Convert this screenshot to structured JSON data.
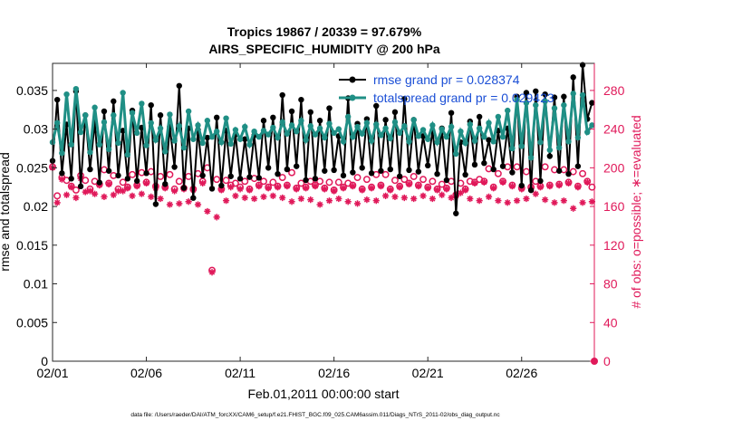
{
  "chart_data": {
    "type": "line",
    "title_line1": "Tropics 19867 / 20339 = 97.679%",
    "title_line2": "AIRS_SPECIFIC_HUMIDITY @ 200 hPa",
    "xlabel": "Feb.01,2011 00:00:00 start",
    "ylabel_left": "rmse and totalspread",
    "ylabel_right": "# of obs: o=possible; ∗=evaluated",
    "footer": "data file: /Users/raeder/DAI/ATM_forcXX/CAM6_setup/f.e21.FHIST_BGC.f09_025.CAM6assim.011/Diags_NTrS_2011-02/obs_diag_output.nc",
    "xlim": [
      0,
      28.875
    ],
    "ylim_left": [
      0,
      0.0385
    ],
    "ylim_right": [
      0,
      308
    ],
    "x_ticks": [
      0,
      5,
      10,
      15,
      20,
      25
    ],
    "x_tick_labels": [
      "02/01",
      "02/06",
      "02/11",
      "02/16",
      "02/21",
      "02/26"
    ],
    "y_left_ticks": [
      0,
      0.005,
      0.01,
      0.015,
      0.02,
      0.025,
      0.03,
      0.035
    ],
    "y_left_tick_labels": [
      "0",
      "0.005",
      "0.01",
      "0.015",
      "0.02",
      "0.025",
      "0.03",
      "0.035"
    ],
    "y_right_ticks": [
      0,
      40,
      80,
      120,
      160,
      200,
      240,
      280
    ],
    "y_right_tick_labels": [
      "0",
      "40",
      "80",
      "120",
      "160",
      "200",
      "240",
      "280"
    ],
    "x": [
      0,
      0.25,
      0.5,
      0.75,
      1,
      1.25,
      1.5,
      1.75,
      2,
      2.25,
      2.5,
      2.75,
      3,
      3.25,
      3.5,
      3.75,
      4,
      4.25,
      4.5,
      4.75,
      5,
      5.25,
      5.5,
      5.75,
      6,
      6.25,
      6.5,
      6.75,
      7,
      7.25,
      7.5,
      7.75,
      8,
      8.25,
      8.5,
      8.75,
      9,
      9.25,
      9.5,
      9.75,
      10,
      10.25,
      10.5,
      10.75,
      11,
      11.25,
      11.5,
      11.75,
      12,
      12.25,
      12.5,
      12.75,
      13,
      13.25,
      13.5,
      13.75,
      14,
      14.25,
      14.5,
      14.75,
      15,
      15.25,
      15.5,
      15.75,
      16,
      16.25,
      16.5,
      16.75,
      17,
      17.25,
      17.5,
      17.75,
      18,
      18.25,
      18.5,
      18.75,
      19,
      19.25,
      19.5,
      19.75,
      20,
      20.25,
      20.5,
      20.75,
      21,
      21.25,
      21.5,
      21.75,
      22,
      22.25,
      22.5,
      22.75,
      23,
      23.25,
      23.5,
      23.75,
      24,
      24.25,
      24.5,
      24.75,
      25,
      25.25,
      25.5,
      25.75,
      26,
      26.25,
      26.5,
      26.75,
      27,
      27.25,
      27.5,
      27.75,
      28,
      28.25,
      28.5,
      28.75
    ],
    "series": [
      {
        "name": "rmse grand pr = 0.028374",
        "color": "#000000",
        "marker": "dot",
        "values": [
          0.0259,
          0.0338,
          0.0243,
          0.0306,
          0.0236,
          0.0349,
          0.0226,
          0.0318,
          0.0248,
          0.0309,
          0.0231,
          0.0323,
          0.0246,
          0.0336,
          0.024,
          0.0298,
          0.0236,
          0.0324,
          0.0233,
          0.0302,
          0.0243,
          0.0331,
          0.0203,
          0.0318,
          0.0229,
          0.0303,
          0.0251,
          0.0356,
          0.0224,
          0.0301,
          0.0211,
          0.0299,
          0.024,
          0.0289,
          0.0223,
          0.0315,
          0.0227,
          0.0298,
          0.0239,
          0.0293,
          0.0236,
          0.0287,
          0.0238,
          0.0292,
          0.0237,
          0.0311,
          0.025,
          0.0315,
          0.0242,
          0.0344,
          0.0248,
          0.0323,
          0.0252,
          0.0338,
          0.0234,
          0.0322,
          0.0236,
          0.0311,
          0.0246,
          0.0327,
          0.0247,
          0.0291,
          0.024,
          0.034,
          0.0244,
          0.0307,
          0.025,
          0.0313,
          0.0243,
          0.033,
          0.0246,
          0.0312,
          0.0248,
          0.0322,
          0.0239,
          0.0339,
          0.0247,
          0.0312,
          0.0245,
          0.0291,
          0.0253,
          0.0298,
          0.0242,
          0.0301,
          0.0234,
          0.0321,
          0.0191,
          0.0283,
          0.0241,
          0.031,
          0.0254,
          0.0316,
          0.0256,
          0.0286,
          0.0248,
          0.0298,
          0.0252,
          0.0301,
          0.0244,
          0.0342,
          0.0227,
          0.0347,
          0.0221,
          0.0349,
          0.0233,
          0.0345,
          0.0265,
          0.0341,
          0.0246,
          0.0342,
          0.0242,
          0.0367,
          0.0252,
          0.0383,
          0.0313,
          0.0334
        ]
      },
      {
        "name": "totalspread grand pr = 0.029423",
        "color": "#1f8f85",
        "marker": "dot",
        "values": [
          0.0283,
          0.0308,
          0.0269,
          0.0345,
          0.028,
          0.0352,
          0.0296,
          0.0318,
          0.027,
          0.0328,
          0.028,
          0.0309,
          0.0274,
          0.0318,
          0.0282,
          0.0347,
          0.0267,
          0.0321,
          0.0295,
          0.0333,
          0.0279,
          0.0308,
          0.0286,
          0.0301,
          0.0271,
          0.0319,
          0.0285,
          0.0304,
          0.0276,
          0.0323,
          0.0287,
          0.0305,
          0.0282,
          0.0311,
          0.029,
          0.0297,
          0.0283,
          0.0314,
          0.0281,
          0.0299,
          0.0287,
          0.0303,
          0.028,
          0.0297,
          0.029,
          0.0298,
          0.0293,
          0.0302,
          0.0289,
          0.0309,
          0.0294,
          0.0305,
          0.0297,
          0.0311,
          0.0286,
          0.0304,
          0.0293,
          0.0301,
          0.0289,
          0.0307,
          0.0295,
          0.03,
          0.0284,
          0.0316,
          0.029,
          0.0303,
          0.0294,
          0.0308,
          0.0285,
          0.0306,
          0.0292,
          0.0301,
          0.0288,
          0.0309,
          0.0295,
          0.0304,
          0.0284,
          0.0312,
          0.0291,
          0.0299,
          0.0287,
          0.0305,
          0.0283,
          0.03,
          0.029,
          0.0303,
          0.0268,
          0.0297,
          0.0282,
          0.0306,
          0.0285,
          0.0301,
          0.029,
          0.0308,
          0.0284,
          0.0316,
          0.029,
          0.0324,
          0.0275,
          0.0338,
          0.0278,
          0.0334,
          0.0263,
          0.0331,
          0.0283,
          0.0336,
          0.0273,
          0.0327,
          0.0276,
          0.0331,
          0.0284,
          0.0346,
          0.0289,
          0.0344,
          0.0296,
          0.0305
        ]
      }
    ],
    "obs_possible": {
      "name": "# of obs possible",
      "color": "#e0195a",
      "marker": "circle",
      "values": [
        201,
        171,
        190,
        187,
        181,
        177,
        192,
        187,
        178,
        186,
        183,
        198,
        184,
        192,
        178,
        185,
        180,
        193,
        182,
        195,
        185,
        196,
        181,
        191,
        180,
        193,
        178,
        186,
        179,
        191,
        178,
        194,
        186,
        200,
        94,
        188,
        178,
        187,
        182,
        184,
        180,
        186,
        178,
        189,
        182,
        186,
        180,
        185,
        181,
        190,
        182,
        195,
        179,
        184,
        180,
        186,
        182,
        186,
        179,
        185,
        177,
        185,
        180,
        184,
        182,
        190,
        178,
        188,
        180,
        193,
        182,
        193,
        178,
        187,
        181,
        188,
        184,
        191,
        182,
        188,
        180,
        186,
        178,
        183,
        179,
        186,
        172,
        184,
        178,
        186,
        185,
        188,
        186,
        199,
        180,
        194,
        186,
        201,
        182,
        201,
        179,
        196,
        180,
        186,
        181,
        201,
        182,
        198,
        183,
        198,
        185,
        196,
        181,
        194,
        186,
        180
      ]
    },
    "obs_evaluated": {
      "name": "# of obs evaluated",
      "color": "#e0195a",
      "marker": "asterisk",
      "values": [
        200,
        164,
        188,
        172,
        180,
        169,
        189,
        175,
        176,
        173,
        182,
        170,
        183,
        172,
        176,
        176,
        179,
        171,
        181,
        173,
        184,
        170,
        179,
        168,
        179,
        162,
        176,
        163,
        178,
        165,
        177,
        162,
        184,
        155,
        92,
        149,
        177,
        166,
        180,
        171,
        178,
        169,
        177,
        168,
        181,
        170,
        179,
        171,
        180,
        169,
        181,
        165,
        178,
        168,
        179,
        167,
        181,
        162,
        178,
        166,
        176,
        168,
        179,
        165,
        181,
        163,
        177,
        167,
        179,
        166,
        181,
        171,
        177,
        170,
        180,
        169,
        183,
        168,
        181,
        171,
        179,
        168,
        177,
        172,
        178,
        169,
        171,
        174,
        177,
        168,
        184,
        166,
        185,
        170,
        179,
        166,
        185,
        164,
        181,
        166,
        178,
        168,
        179,
        173,
        180,
        167,
        181,
        164,
        182,
        166,
        184,
        158,
        180,
        164,
        185,
        165
      ]
    }
  }
}
